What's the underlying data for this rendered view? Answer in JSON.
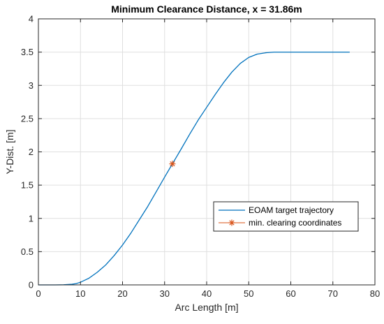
{
  "chart_data": {
    "type": "line",
    "title": "Minimum Clearance Distance, x = 31.86m",
    "xlabel": "Arc Length [m]",
    "ylabel": "Y-Dist. [m]",
    "xlim": [
      0,
      80
    ],
    "ylim": [
      0,
      4
    ],
    "xticks": [
      0,
      10,
      20,
      30,
      40,
      50,
      60,
      70,
      80
    ],
    "yticks": [
      0,
      0.5,
      1,
      1.5,
      2,
      2.5,
      3,
      3.5,
      4
    ],
    "xtick_labels": [
      "0",
      "10",
      "20",
      "30",
      "40",
      "50",
      "60",
      "70",
      "80"
    ],
    "ytick_labels": [
      "0",
      "0.5",
      "1",
      "1.5",
      "2",
      "2.5",
      "3",
      "3.5",
      "4"
    ],
    "grid": true,
    "legend_position": "lower-right",
    "series": [
      {
        "name": "EOAM target trajectory",
        "color": "#0072BD",
        "x": [
          0,
          2,
          4,
          6,
          8,
          9,
          10,
          11,
          12,
          14,
          16,
          18,
          20,
          22,
          24,
          26,
          28,
          30,
          31.86,
          34,
          36,
          38,
          40,
          42,
          44,
          46,
          48,
          50,
          52,
          54,
          56,
          58,
          60,
          65,
          70,
          74
        ],
        "y": [
          0,
          0,
          0,
          0.002,
          0.01,
          0.02,
          0.04,
          0.07,
          0.1,
          0.19,
          0.3,
          0.44,
          0.6,
          0.78,
          0.98,
          1.18,
          1.4,
          1.62,
          1.82,
          2.05,
          2.27,
          2.48,
          2.67,
          2.86,
          3.04,
          3.2,
          3.33,
          3.42,
          3.47,
          3.49,
          3.5,
          3.5,
          3.5,
          3.5,
          3.5,
          3.5
        ]
      },
      {
        "name": "min. clearing coordinates",
        "color": "#D95319",
        "marker": "asterisk",
        "x": [
          31.86
        ],
        "y": [
          1.82
        ]
      }
    ]
  }
}
